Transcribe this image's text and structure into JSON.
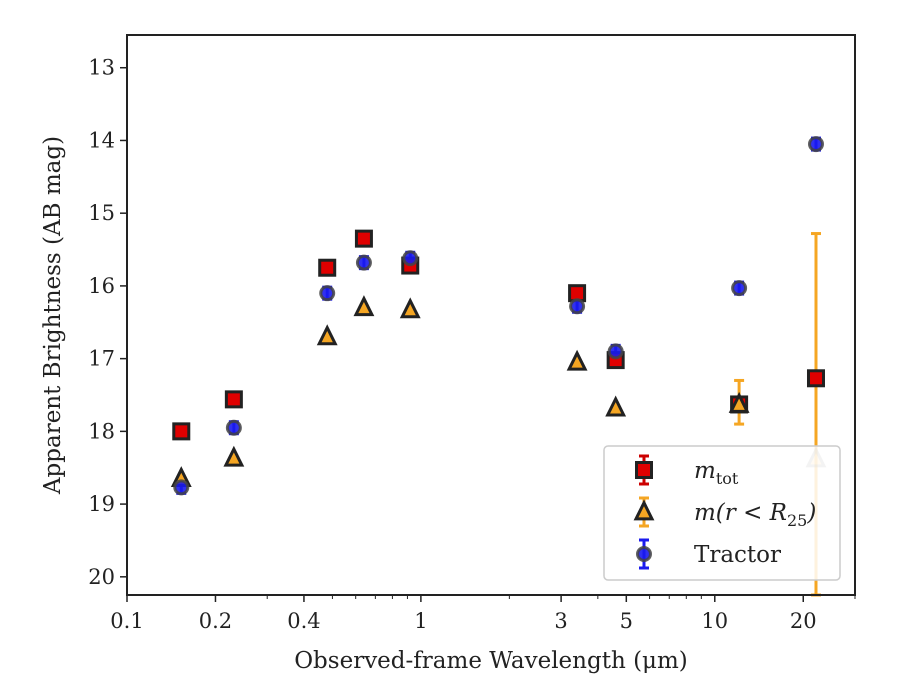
{
  "chart_data": {
    "type": "scatter",
    "xlabel": "Observed-frame Wavelength (μm)",
    "ylabel": "Apparent Brightness (AB mag)",
    "x_scale": "log",
    "xlim": [
      0.1,
      30
    ],
    "ylim": [
      20.25,
      12.55
    ],
    "y_inverted": true,
    "x_ticks": [
      {
        "value": 0.1,
        "label": "0.1"
      },
      {
        "value": 0.2,
        "label": "0.2"
      },
      {
        "value": 0.4,
        "label": "0.4"
      },
      {
        "value": 1,
        "label": "1"
      },
      {
        "value": 3,
        "label": "3"
      },
      {
        "value": 5,
        "label": "5"
      },
      {
        "value": 10,
        "label": "10"
      },
      {
        "value": 20,
        "label": "20"
      }
    ],
    "y_ticks": [
      {
        "value": 13,
        "label": "13"
      },
      {
        "value": 14,
        "label": "14"
      },
      {
        "value": 15,
        "label": "15"
      },
      {
        "value": 16,
        "label": "16"
      },
      {
        "value": 17,
        "label": "17"
      },
      {
        "value": 18,
        "label": "18"
      },
      {
        "value": 19,
        "label": "19"
      },
      {
        "value": 20,
        "label": "20"
      }
    ],
    "grid": false,
    "legend_position": "lower-right",
    "series": [
      {
        "key": "mtot",
        "name_main": "m",
        "name_sub": "tot",
        "marker": "square",
        "color": "#e00000",
        "edge": "#222222",
        "errcolor": "#cc0000",
        "points": [
          {
            "x": 0.153,
            "y": 18.0
          },
          {
            "x": 0.231,
            "y": 17.56
          },
          {
            "x": 0.48,
            "y": 15.75
          },
          {
            "x": 0.64,
            "y": 15.35
          },
          {
            "x": 0.92,
            "y": 15.72
          },
          {
            "x": 3.4,
            "y": 16.1
          },
          {
            "x": 4.6,
            "y": 17.02
          },
          {
            "x": 12.1,
            "y": 17.63
          },
          {
            "x": 22.1,
            "y": 17.27,
            "err": [
              17.27,
              17.27
            ]
          }
        ]
      },
      {
        "key": "mr25",
        "name_main": "m(r < R",
        "name_sub": "25",
        "name_tail": ")",
        "marker": "triangle",
        "color": "#f5a623",
        "edge": "#222222",
        "errcolor": "#f5a623",
        "points": [
          {
            "x": 0.153,
            "y": 18.65
          },
          {
            "x": 0.231,
            "y": 18.37
          },
          {
            "x": 0.48,
            "y": 16.7
          },
          {
            "x": 0.64,
            "y": 16.3
          },
          {
            "x": 0.92,
            "y": 16.33
          },
          {
            "x": 3.4,
            "y": 17.05
          },
          {
            "x": 4.6,
            "y": 17.68
          },
          {
            "x": 12.1,
            "y": 17.63,
            "err": [
              17.3,
              17.9
            ]
          },
          {
            "x": 22.1,
            "y": 18.38,
            "err": [
              15.28,
              20.25
            ],
            "faded": true
          }
        ]
      },
      {
        "key": "tractor",
        "name_main": "Tractor",
        "marker": "circle",
        "color": "#1a1aee",
        "edge": "#444444",
        "errcolor": "#1a1aee",
        "points": [
          {
            "x": 0.153,
            "y": 18.77
          },
          {
            "x": 0.231,
            "y": 17.95
          },
          {
            "x": 0.48,
            "y": 16.1
          },
          {
            "x": 0.64,
            "y": 15.68
          },
          {
            "x": 0.92,
            "y": 15.62
          },
          {
            "x": 3.4,
            "y": 16.28
          },
          {
            "x": 4.6,
            "y": 16.9
          },
          {
            "x": 12.1,
            "y": 16.03
          },
          {
            "x": 22.1,
            "y": 14.05
          }
        ]
      }
    ]
  }
}
